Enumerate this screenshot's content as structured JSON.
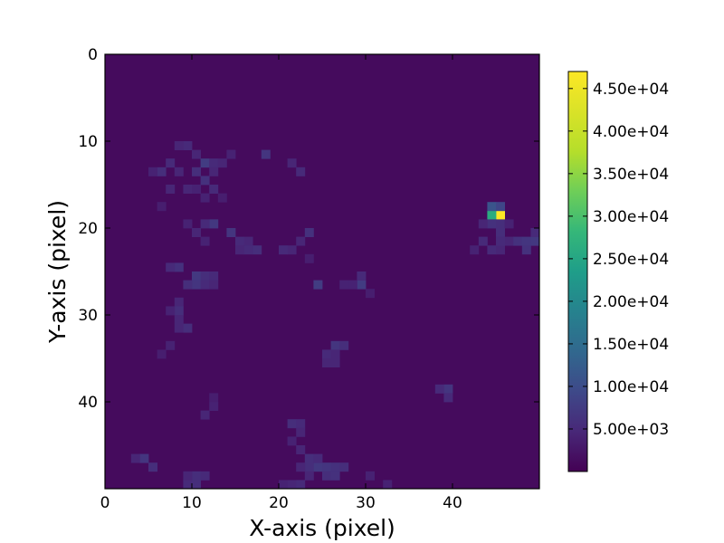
{
  "chart_data": {
    "type": "heatmap",
    "title": "",
    "xlabel": "X-axis (pixel)",
    "ylabel": "Y-axis (pixel)",
    "grid_size": [
      50,
      50
    ],
    "xlim": [
      0,
      50
    ],
    "ylim": [
      50,
      0
    ],
    "x_ticks": [
      0,
      10,
      20,
      30,
      40
    ],
    "x_tick_labels": [
      "0",
      "10",
      "20",
      "30",
      "40"
    ],
    "y_ticks": [
      0,
      10,
      20,
      30,
      40
    ],
    "y_tick_labels": [
      "0",
      "10",
      "20",
      "30",
      "40"
    ],
    "colormap": "viridis",
    "background_value": 1200,
    "value_range": [
      0,
      47000
    ],
    "colorbar": {
      "ticks": [
        5000,
        10000,
        15000,
        20000,
        25000,
        30000,
        35000,
        40000,
        45000
      ],
      "tick_labels": [
        "5.00e+03",
        "1.00e+04",
        "1.50e+04",
        "2.00e+04",
        "2.50e+04",
        "3.00e+04",
        "3.50e+04",
        "4.00e+04",
        "4.50e+04"
      ]
    },
    "cells": [
      [
        45,
        18,
        47000
      ],
      [
        44,
        18,
        26000
      ],
      [
        44,
        17,
        11000
      ],
      [
        45,
        17,
        9000
      ],
      [
        44,
        19,
        6000
      ],
      [
        45,
        19,
        5500
      ],
      [
        43,
        19,
        4500
      ],
      [
        46,
        19,
        4000
      ],
      [
        45,
        20,
        5500
      ],
      [
        46,
        21,
        4500
      ],
      [
        47,
        21,
        6000
      ],
      [
        48,
        21,
        6500
      ],
      [
        49,
        21,
        7000
      ],
      [
        48,
        22,
        6000
      ],
      [
        49,
        20,
        5000
      ],
      [
        44,
        22,
        5000
      ],
      [
        45,
        22,
        4500
      ],
      [
        43,
        21,
        5000
      ],
      [
        42,
        22,
        4000
      ],
      [
        45,
        21,
        5000
      ],
      [
        9,
        10,
        5000
      ],
      [
        8,
        10,
        4500
      ],
      [
        7,
        12,
        5000
      ],
      [
        6,
        13,
        5500
      ],
      [
        5,
        13,
        4000
      ],
      [
        8,
        13,
        4500
      ],
      [
        10,
        11,
        4500
      ],
      [
        11,
        12,
        7500
      ],
      [
        10,
        13,
        5500
      ],
      [
        12,
        12,
        5000
      ],
      [
        13,
        12,
        4500
      ],
      [
        14,
        11,
        4000
      ],
      [
        12,
        13,
        4500
      ],
      [
        11,
        14,
        6000
      ],
      [
        12,
        15,
        5000
      ],
      [
        9,
        15,
        4500
      ],
      [
        10,
        15,
        4000
      ],
      [
        7,
        15,
        4500
      ],
      [
        13,
        16,
        3500
      ],
      [
        11,
        16,
        4000
      ],
      [
        6,
        17,
        3500
      ],
      [
        12,
        19,
        7000
      ],
      [
        11,
        19,
        5000
      ],
      [
        10,
        20,
        4500
      ],
      [
        9,
        19,
        4000
      ],
      [
        11,
        21,
        4000
      ],
      [
        14,
        20,
        6500
      ],
      [
        15,
        21,
        5000
      ],
      [
        16,
        21,
        4500
      ],
      [
        17,
        22,
        5500
      ],
      [
        16,
        22,
        5000
      ],
      [
        15,
        22,
        4500
      ],
      [
        18,
        11,
        6500
      ],
      [
        21,
        12,
        4500
      ],
      [
        22,
        13,
        5000
      ],
      [
        23,
        20,
        6000
      ],
      [
        22,
        21,
        4500
      ],
      [
        21,
        22,
        4500
      ],
      [
        20,
        22,
        5000
      ],
      [
        23,
        23,
        3500
      ],
      [
        8,
        24,
        6000
      ],
      [
        7,
        24,
        5000
      ],
      [
        10,
        25,
        7000
      ],
      [
        10,
        26,
        6500
      ],
      [
        11,
        25,
        5500
      ],
      [
        12,
        25,
        5000
      ],
      [
        9,
        26,
        5500
      ],
      [
        11,
        26,
        5000
      ],
      [
        12,
        26,
        4500
      ],
      [
        24,
        26,
        7500
      ],
      [
        29,
        26,
        7500
      ],
      [
        29,
        25,
        5000
      ],
      [
        28,
        26,
        4000
      ],
      [
        27,
        26,
        4000
      ],
      [
        30,
        27,
        3500
      ],
      [
        8,
        28,
        4500
      ],
      [
        8,
        29,
        5500
      ],
      [
        8,
        30,
        4500
      ],
      [
        9,
        31,
        5500
      ],
      [
        8,
        31,
        4500
      ],
      [
        7,
        29,
        4000
      ],
      [
        7,
        33,
        4000
      ],
      [
        6,
        34,
        3500
      ],
      [
        26,
        33,
        6500
      ],
      [
        27,
        33,
        5500
      ],
      [
        25,
        34,
        5000
      ],
      [
        26,
        34,
        4500
      ],
      [
        25,
        35,
        4500
      ],
      [
        26,
        35,
        4500
      ],
      [
        39,
        38,
        6500
      ],
      [
        38,
        38,
        5000
      ],
      [
        39,
        39,
        5000
      ],
      [
        11,
        41,
        4500
      ],
      [
        12,
        40,
        4000
      ],
      [
        12,
        39,
        3500
      ],
      [
        21,
        42,
        5500
      ],
      [
        22,
        42,
        5000
      ],
      [
        22,
        43,
        4500
      ],
      [
        21,
        44,
        4000
      ],
      [
        22,
        45,
        4500
      ],
      [
        23,
        46,
        5500
      ],
      [
        24,
        47,
        7000
      ],
      [
        25,
        47,
        6500
      ],
      [
        26,
        47,
        6000
      ],
      [
        23,
        47,
        5500
      ],
      [
        24,
        46,
        5000
      ],
      [
        25,
        48,
        5500
      ],
      [
        26,
        48,
        6000
      ],
      [
        27,
        47,
        5500
      ],
      [
        23,
        48,
        4500
      ],
      [
        22,
        47,
        4500
      ],
      [
        21,
        49,
        4500
      ],
      [
        20,
        49,
        4000
      ],
      [
        22,
        49,
        5000
      ],
      [
        4,
        46,
        6500
      ],
      [
        5,
        47,
        5500
      ],
      [
        3,
        46,
        4500
      ],
      [
        10,
        48,
        5500
      ],
      [
        11,
        48,
        5000
      ],
      [
        10,
        49,
        5500
      ],
      [
        9,
        49,
        5000
      ],
      [
        9,
        48,
        4500
      ],
      [
        30,
        48,
        4000
      ],
      [
        32,
        49,
        4000
      ]
    ]
  }
}
